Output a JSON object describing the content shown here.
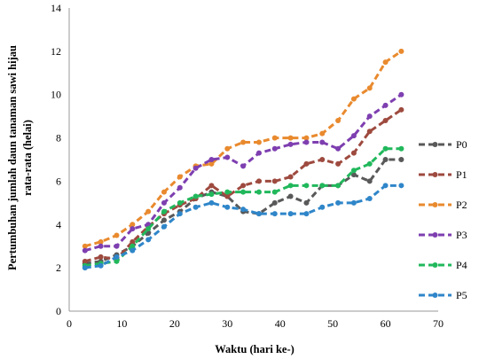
{
  "chart_data": {
    "type": "line",
    "title": "",
    "xlabel": "Waktu (hari ke-)",
    "ylabel_line1": "Pertumbuhan jumlah daun tanaman sawi hijau",
    "ylabel_line2": "rata-rata (helai)",
    "xlim": [
      0,
      70
    ],
    "ylim": [
      0,
      14
    ],
    "xticks": [
      0,
      10,
      20,
      30,
      40,
      50,
      60,
      70
    ],
    "yticks": [
      0,
      2,
      4,
      6,
      8,
      10,
      12,
      14
    ],
    "grid": false,
    "legend_position": "right",
    "line_style": "dashed",
    "markers": true,
    "x": [
      3,
      6,
      9,
      12,
      15,
      18,
      21,
      24,
      27,
      30,
      33,
      36,
      39,
      42,
      45,
      48,
      51,
      54,
      57,
      60,
      63
    ],
    "series": [
      {
        "name": "P0",
        "color": "#595959",
        "values": [
          2.2,
          2.3,
          2.6,
          3.0,
          3.6,
          4.2,
          4.6,
          5.2,
          5.5,
          5.3,
          4.6,
          4.5,
          5.0,
          5.3,
          5.0,
          5.8,
          5.8,
          6.3,
          6.0,
          7.0,
          7.0
        ]
      },
      {
        "name": "P1",
        "color": "#9e4a3f",
        "values": [
          2.3,
          2.5,
          2.4,
          3.2,
          3.9,
          4.5,
          4.9,
          5.2,
          5.8,
          5.3,
          5.8,
          6.0,
          6.0,
          6.2,
          6.8,
          7.0,
          6.8,
          7.3,
          8.3,
          8.8,
          9.3
        ]
      },
      {
        "name": "P2",
        "color": "#e98a2e",
        "values": [
          3.0,
          3.2,
          3.5,
          4.0,
          4.6,
          5.5,
          6.2,
          6.7,
          6.8,
          7.5,
          7.8,
          7.8,
          8.0,
          8.0,
          8.0,
          8.2,
          8.8,
          9.8,
          10.3,
          11.5,
          12.0
        ]
      },
      {
        "name": "P3",
        "color": "#7e3fb0",
        "values": [
          2.8,
          3.0,
          3.0,
          3.8,
          4.0,
          5.0,
          5.7,
          6.6,
          7.0,
          7.1,
          6.7,
          7.3,
          7.5,
          7.7,
          7.8,
          7.8,
          7.5,
          8.1,
          9.0,
          9.5,
          10.0
        ]
      },
      {
        "name": "P4",
        "color": "#21b85c",
        "values": [
          2.1,
          2.2,
          2.3,
          3.0,
          3.8,
          4.6,
          5.0,
          5.3,
          5.4,
          5.5,
          5.5,
          5.5,
          5.5,
          5.8,
          5.8,
          5.8,
          5.8,
          6.5,
          6.8,
          7.5,
          7.5
        ]
      },
      {
        "name": "P5",
        "color": "#2f86c9",
        "values": [
          2.0,
          2.1,
          2.5,
          2.8,
          3.3,
          3.9,
          4.5,
          4.8,
          5.0,
          4.8,
          4.7,
          4.5,
          4.5,
          4.5,
          4.5,
          4.8,
          5.0,
          5.0,
          5.2,
          5.8,
          5.8
        ]
      }
    ]
  }
}
